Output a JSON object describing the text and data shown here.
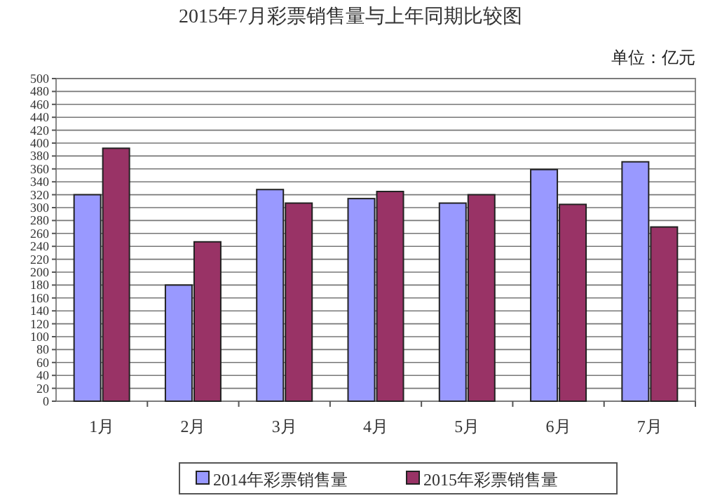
{
  "chart_data": {
    "type": "bar",
    "title": "2015年7月彩票销售量与上年同期比较图",
    "annotations": [
      "单位：亿元"
    ],
    "categories": [
      "1月",
      "2月",
      "3月",
      "4月",
      "5月",
      "6月",
      "7月"
    ],
    "series": [
      {
        "name": "2014年彩票销售量",
        "color": "#9999ff",
        "values": [
          320,
          180,
          328,
          314,
          307,
          359,
          371
        ]
      },
      {
        "name": "2015年彩票销售量",
        "color": "#993366",
        "values": [
          392,
          247,
          307,
          325,
          320,
          305,
          270
        ]
      }
    ],
    "ylim": [
      0,
      500
    ],
    "yticks": [
      0,
      20,
      40,
      60,
      80,
      100,
      120,
      140,
      160,
      180,
      200,
      220,
      240,
      260,
      280,
      300,
      320,
      340,
      360,
      380,
      400,
      420,
      440,
      460,
      480,
      500
    ],
    "grid": "y",
    "legend": "bottom"
  }
}
